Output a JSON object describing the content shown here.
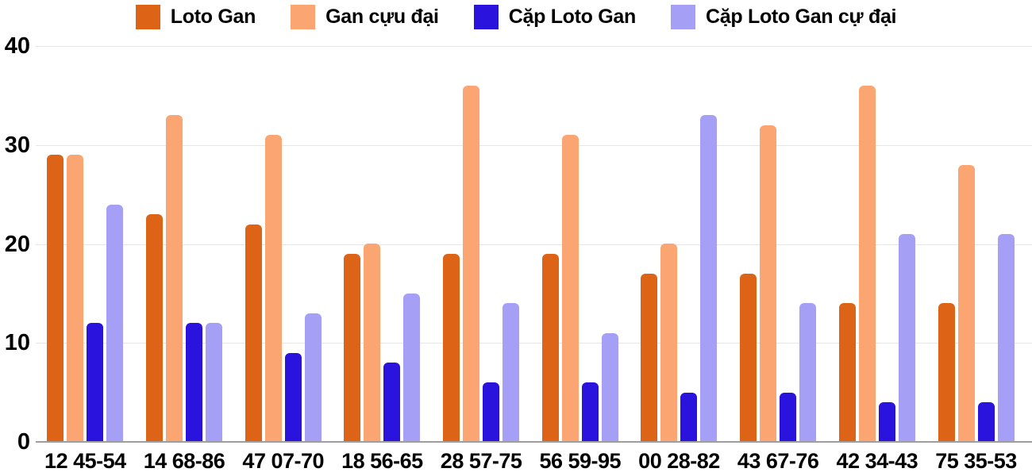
{
  "chart_data": {
    "type": "bar",
    "title": "",
    "xlabel": "",
    "ylabel": "",
    "ylim": [
      0,
      40
    ],
    "yticks": [
      0,
      10,
      20,
      30,
      40
    ],
    "grid": true,
    "legend_position": "top",
    "categories": [
      "12 45-54",
      "14 68-86",
      "47 07-70",
      "18 56-65",
      "28 57-75",
      "56 59-95",
      "00 28-82",
      "43 67-76",
      "42 34-43",
      "75 35-53"
    ],
    "series": [
      {
        "name": "Loto Gan",
        "color": "#dd6416",
        "values": [
          29,
          23,
          22,
          19,
          19,
          19,
          17,
          17,
          14,
          14
        ]
      },
      {
        "name": "Gan cựu đại",
        "color": "#fba572",
        "values": [
          29,
          33,
          31,
          20,
          36,
          31,
          20,
          32,
          36,
          28
        ]
      },
      {
        "name": "Cặp Loto Gan",
        "color": "#2913dd",
        "values": [
          12,
          12,
          9,
          8,
          6,
          6,
          5,
          5,
          4,
          4
        ]
      },
      {
        "name": "Cặp Loto Gan cự đại",
        "color": "#a5a0f5",
        "values": [
          24,
          12,
          13,
          15,
          14,
          11,
          33,
          14,
          21,
          21
        ]
      }
    ]
  },
  "colors": {
    "background": "#ffffff",
    "gridline": "#e6e6e6",
    "axis_line": "#9e9e9e",
    "text": "#000000"
  }
}
